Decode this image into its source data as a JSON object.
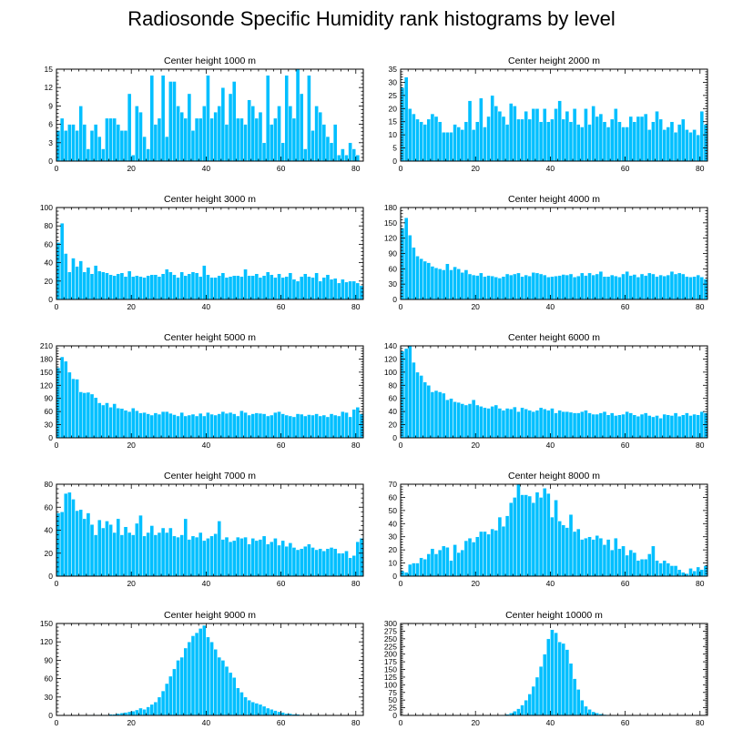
{
  "title": "Radiosonde Specific Humidity rank histograms by level",
  "colors": {
    "bar": "#00bfff",
    "bar_edge": "#ffffff",
    "axis": "#000000"
  },
  "chart_data": [
    {
      "type": "bar",
      "title": "Center height 1000 m",
      "xlim": [
        0,
        82
      ],
      "ylim": [
        0,
        15
      ],
      "xticks": [
        0,
        20,
        40,
        60,
        80
      ],
      "yticks": [
        0,
        3,
        6,
        9,
        12,
        15
      ],
      "values": [
        5,
        7,
        5,
        6,
        6,
        5,
        9,
        6,
        2,
        5,
        6,
        4,
        2,
        7,
        7,
        7,
        6,
        5,
        5,
        11,
        1,
        9,
        8,
        4,
        2,
        14,
        6,
        7,
        14,
        4,
        13,
        13,
        9,
        8,
        7,
        11,
        5,
        7,
        7,
        9,
        14,
        7,
        8,
        9,
        12,
        6,
        11,
        13,
        7,
        7,
        6,
        10,
        9,
        7,
        8,
        3,
        14,
        6,
        7,
        9,
        3,
        14,
        9,
        7,
        15,
        11,
        2,
        14,
        5,
        9,
        8,
        6,
        4,
        3,
        6,
        1,
        2,
        1,
        3,
        2,
        1
      ]
    },
    {
      "type": "bar",
      "title": "Center height 2000 m",
      "xlim": [
        0,
        82
      ],
      "ylim": [
        0,
        35
      ],
      "xticks": [
        0,
        20,
        40,
        60,
        80
      ],
      "yticks": [
        0,
        5,
        10,
        15,
        20,
        25,
        30,
        35
      ],
      "values": [
        28,
        32,
        20,
        18,
        16,
        15,
        14,
        16,
        18,
        17,
        15,
        11,
        11,
        11,
        14,
        13,
        12,
        15,
        23,
        12,
        15,
        24,
        13,
        17,
        25,
        21,
        19,
        17,
        14,
        22,
        21,
        16,
        16,
        19,
        16,
        20,
        20,
        15,
        20,
        15,
        16,
        20,
        23,
        16,
        19,
        15,
        20,
        14,
        13,
        20,
        14,
        21,
        17,
        18,
        15,
        13,
        16,
        20,
        15,
        13,
        13,
        17,
        15,
        17,
        17,
        18,
        12,
        15,
        19,
        16,
        12,
        13,
        15,
        11,
        14,
        16,
        12,
        11,
        12,
        10,
        19,
        14
      ]
    },
    {
      "type": "bar",
      "title": "Center height 3000 m",
      "xlim": [
        0,
        82
      ],
      "ylim": [
        0,
        100
      ],
      "xticks": [
        0,
        20,
        40,
        60,
        80
      ],
      "yticks": [
        0,
        20,
        40,
        60,
        80,
        100
      ],
      "values": [
        62,
        83,
        50,
        30,
        45,
        36,
        42,
        30,
        35,
        28,
        37,
        31,
        30,
        29,
        27,
        26,
        28,
        29,
        25,
        31,
        25,
        26,
        25,
        24,
        26,
        27,
        27,
        25,
        28,
        33,
        30,
        27,
        24,
        30,
        26,
        28,
        30,
        29,
        25,
        37,
        27,
        24,
        24,
        26,
        29,
        24,
        25,
        26,
        26,
        25,
        33,
        26,
        26,
        28,
        24,
        26,
        30,
        27,
        24,
        28,
        24,
        25,
        29,
        22,
        20,
        25,
        28,
        25,
        24,
        29,
        20,
        24,
        27,
        22,
        23,
        18,
        22,
        19,
        20,
        20,
        18,
        15
      ]
    },
    {
      "type": "bar",
      "title": "Center height 4000 m",
      "xlim": [
        0,
        82
      ],
      "ylim": [
        0,
        180
      ],
      "xticks": [
        0,
        20,
        40,
        60,
        80
      ],
      "yticks": [
        0,
        30,
        60,
        90,
        120,
        150,
        180
      ],
      "values": [
        140,
        160,
        126,
        102,
        85,
        80,
        75,
        72,
        65,
        62,
        60,
        58,
        70,
        58,
        64,
        60,
        53,
        58,
        50,
        48,
        47,
        52,
        45,
        47,
        46,
        44,
        42,
        45,
        50,
        48,
        50,
        52,
        45,
        48,
        46,
        53,
        52,
        50,
        48,
        44,
        45,
        46,
        47,
        49,
        48,
        50,
        44,
        46,
        52,
        47,
        52,
        48,
        50,
        55,
        45,
        45,
        48,
        46,
        44,
        50,
        55,
        47,
        49,
        44,
        50,
        47,
        52,
        50,
        45,
        48,
        46,
        48,
        55,
        50,
        52,
        50,
        45,
        44,
        45,
        48,
        44,
        40
      ]
    },
    {
      "type": "bar",
      "title": "Center height 5000 m",
      "xlim": [
        0,
        82
      ],
      "ylim": [
        0,
        210
      ],
      "xticks": [
        0,
        20,
        40,
        60,
        80
      ],
      "yticks": [
        0,
        30,
        60,
        90,
        120,
        150,
        180,
        210
      ],
      "values": [
        160,
        185,
        175,
        150,
        135,
        134,
        105,
        103,
        104,
        100,
        92,
        80,
        75,
        80,
        70,
        78,
        68,
        67,
        63,
        60,
        68,
        62,
        57,
        58,
        55,
        52,
        57,
        54,
        60,
        60,
        56,
        53,
        50,
        58,
        50,
        52,
        54,
        50,
        56,
        50,
        58,
        54,
        52,
        55,
        60,
        56,
        58,
        55,
        50,
        62,
        58,
        52,
        55,
        57,
        56,
        55,
        50,
        52,
        58,
        60,
        55,
        52,
        50,
        48,
        55,
        54,
        50,
        53,
        52,
        55,
        50,
        52,
        48,
        55,
        52,
        50,
        60,
        58,
        48,
        65,
        70,
        55
      ]
    },
    {
      "type": "bar",
      "title": "Center height 6000 m",
      "xlim": [
        0,
        82
      ],
      "ylim": [
        0,
        140
      ],
      "xticks": [
        0,
        20,
        40,
        60,
        80
      ],
      "yticks": [
        0,
        20,
        40,
        60,
        80,
        100,
        120,
        140
      ],
      "values": [
        132,
        136,
        140,
        115,
        100,
        95,
        85,
        80,
        70,
        72,
        70,
        68,
        58,
        60,
        55,
        54,
        52,
        50,
        52,
        58,
        50,
        48,
        46,
        45,
        48,
        50,
        45,
        42,
        45,
        44,
        47,
        40,
        46,
        44,
        42,
        40,
        42,
        46,
        44,
        42,
        45,
        38,
        42,
        40,
        40,
        39,
        38,
        38,
        40,
        42,
        38,
        36,
        36,
        38,
        40,
        35,
        38,
        34,
        35,
        36,
        40,
        38,
        35,
        33,
        36,
        38,
        34,
        32,
        34,
        30,
        36,
        35,
        34,
        38,
        33,
        35,
        38,
        34,
        36,
        35,
        40,
        38
      ]
    },
    {
      "type": "bar",
      "title": "Center height 7000 m",
      "xlim": [
        0,
        82
      ],
      "ylim": [
        0,
        80
      ],
      "xticks": [
        0,
        20,
        40,
        60,
        80
      ],
      "yticks": [
        0,
        20,
        40,
        60,
        80
      ],
      "values": [
        55,
        56,
        72,
        73,
        67,
        57,
        58,
        50,
        55,
        45,
        36,
        49,
        42,
        48,
        45,
        38,
        50,
        36,
        43,
        38,
        36,
        46,
        53,
        35,
        38,
        44,
        36,
        38,
        42,
        38,
        42,
        35,
        34,
        36,
        50,
        32,
        35,
        34,
        38,
        31,
        33,
        35,
        37,
        48,
        32,
        34,
        30,
        31,
        34,
        33,
        34,
        28,
        33,
        31,
        32,
        35,
        28,
        30,
        33,
        27,
        31,
        26,
        29,
        25,
        23,
        24,
        26,
        28,
        25,
        23,
        24,
        22,
        24,
        25,
        24,
        20,
        20,
        22,
        16,
        18,
        30,
        33
      ]
    },
    {
      "type": "bar",
      "title": "Center height 8000 m",
      "xlim": [
        0,
        82
      ],
      "ylim": [
        0,
        70
      ],
      "xticks": [
        0,
        20,
        40,
        60,
        80
      ],
      "yticks": [
        0,
        10,
        20,
        30,
        40,
        50,
        60,
        70
      ],
      "values": [
        4,
        3,
        9,
        10,
        10,
        14,
        13,
        17,
        21,
        17,
        20,
        23,
        22,
        12,
        24,
        18,
        20,
        27,
        29,
        26,
        30,
        34,
        34,
        32,
        36,
        35,
        45,
        38,
        46,
        56,
        60,
        70,
        62,
        62,
        61,
        56,
        64,
        60,
        67,
        63,
        45,
        58,
        42,
        39,
        37,
        47,
        34,
        36,
        28,
        29,
        30,
        28,
        31,
        29,
        24,
        28,
        20,
        29,
        21,
        23,
        16,
        20,
        18,
        12,
        13,
        13,
        17,
        23,
        12,
        10,
        12,
        10,
        8,
        8,
        5,
        3,
        2,
        6,
        4,
        7,
        5,
        8
      ]
    },
    {
      "type": "bar",
      "title": "Center height 9000 m",
      "xlim": [
        0,
        82
      ],
      "ylim": [
        0,
        150
      ],
      "xticks": [
        0,
        20,
        40,
        60,
        80
      ],
      "yticks": [
        0,
        30,
        60,
        90,
        120,
        150
      ],
      "values": [
        0,
        0,
        0,
        0,
        0,
        0,
        0,
        0,
        0,
        1,
        1,
        1,
        1,
        1,
        2,
        2,
        3,
        4,
        5,
        6,
        7,
        9,
        12,
        10,
        14,
        18,
        22,
        30,
        40,
        52,
        64,
        76,
        90,
        95,
        110,
        120,
        130,
        135,
        142,
        147,
        128,
        120,
        108,
        95,
        90,
        80,
        70,
        62,
        45,
        38,
        30,
        25,
        22,
        20,
        18,
        15,
        12,
        10,
        8,
        6,
        5,
        3,
        3,
        2,
        2,
        1,
        1,
        1,
        1,
        1,
        0,
        0,
        0,
        0,
        0,
        0,
        0,
        0,
        0,
        0,
        0,
        0
      ]
    },
    {
      "type": "bar",
      "title": "Center height 10000 m",
      "xlim": [
        0,
        82
      ],
      "ylim": [
        0,
        300
      ],
      "xticks": [
        0,
        20,
        40,
        60,
        80
      ],
      "yticks": [
        0,
        25,
        50,
        75,
        100,
        125,
        150,
        175,
        200,
        225,
        250,
        275,
        300
      ],
      "values": [
        0,
        0,
        0,
        0,
        0,
        0,
        0,
        0,
        0,
        0,
        0,
        0,
        0,
        0,
        0,
        0,
        0,
        0,
        0,
        0,
        0,
        0,
        0,
        0,
        0,
        0,
        1,
        2,
        4,
        8,
        14,
        22,
        34,
        50,
        70,
        95,
        125,
        160,
        200,
        250,
        280,
        270,
        240,
        235,
        215,
        170,
        120,
        85,
        50,
        30,
        20,
        12,
        8,
        5,
        3,
        2,
        1,
        1,
        0,
        0,
        0,
        0,
        0,
        0,
        0,
        0,
        1,
        0,
        0,
        0,
        0,
        0,
        0,
        0,
        0,
        0,
        0,
        0,
        0,
        0,
        0,
        0
      ]
    }
  ]
}
